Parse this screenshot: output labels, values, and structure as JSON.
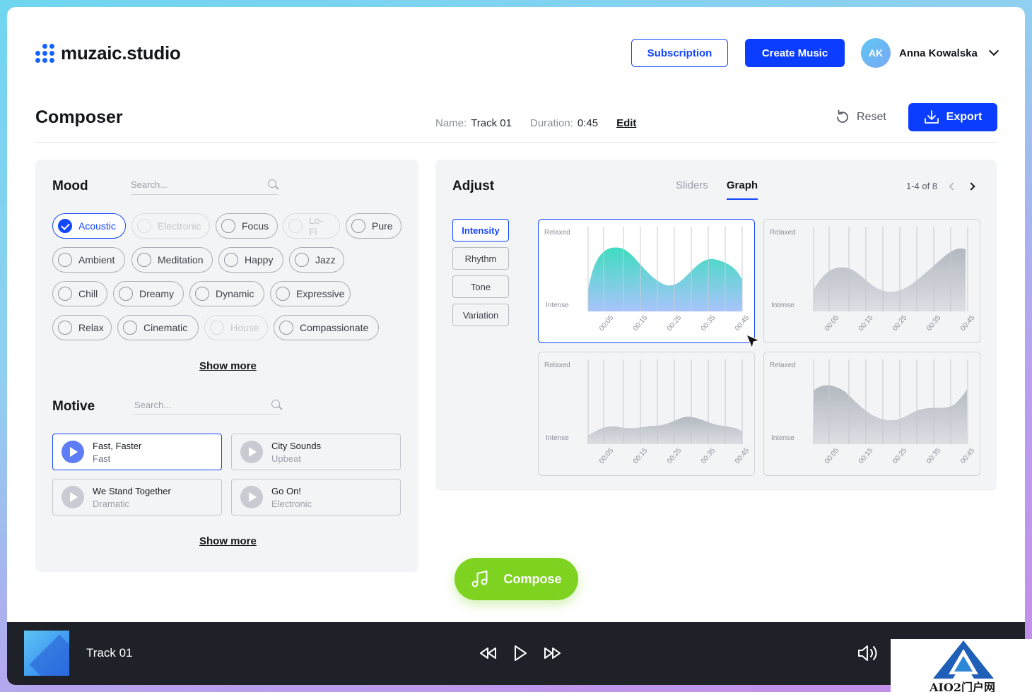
{
  "app": {
    "logo_text": "muzaic.studio",
    "brand_color": "#0a3dff"
  },
  "header": {
    "subscription_label": "Subscription",
    "create_music_label": "Create Music",
    "user": {
      "initials": "AK",
      "name": "Anna Kowalska"
    }
  },
  "composer": {
    "title": "Composer",
    "name_label": "Name:",
    "name_value": "Track 01",
    "duration_label": "Duration:",
    "duration_value": "0:45",
    "edit_label": "Edit",
    "reset_label": "Reset",
    "export_label": "Export"
  },
  "mood": {
    "title": "Mood",
    "search_placeholder": "Search...",
    "chips": [
      {
        "label": "Acoustic",
        "state": "selected"
      },
      {
        "label": "Electronic",
        "state": "disabled"
      },
      {
        "label": "Focus",
        "state": "normal"
      },
      {
        "label": "Lo-Fi",
        "state": "disabled"
      },
      {
        "label": "Pure",
        "state": "normal"
      },
      {
        "label": "Ambient",
        "state": "normal"
      },
      {
        "label": "Meditation",
        "state": "normal"
      },
      {
        "label": "Happy",
        "state": "normal"
      },
      {
        "label": "Jazz",
        "state": "normal"
      },
      {
        "label": "Chill",
        "state": "normal"
      },
      {
        "label": "Dreamy",
        "state": "normal"
      },
      {
        "label": "Dynamic",
        "state": "normal"
      },
      {
        "label": "Expressive",
        "state": "normal"
      },
      {
        "label": "Relax",
        "state": "normal"
      },
      {
        "label": "Cinematic",
        "state": "normal"
      },
      {
        "label": "House",
        "state": "disabled"
      },
      {
        "label": "Compassionate",
        "state": "normal"
      }
    ],
    "show_more_label": "Show more"
  },
  "motive": {
    "title": "Motive",
    "search_placeholder": "Search...",
    "items": [
      {
        "title": "Fast, Faster",
        "subtitle": "Fast",
        "active": true
      },
      {
        "title": "City Sounds",
        "subtitle": "Upbeat",
        "active": false
      },
      {
        "title": "We Stand Together",
        "subtitle": "Dramatic",
        "active": false
      },
      {
        "title": "Go On!",
        "subtitle": "Electronic",
        "active": false
      }
    ],
    "show_more_label": "Show more"
  },
  "adjust": {
    "title": "Adjust",
    "tabs": [
      {
        "label": "Sliders",
        "active": false
      },
      {
        "label": "Graph",
        "active": true
      }
    ],
    "pagination": "1-4 of 8",
    "params": [
      {
        "label": "Intensity",
        "active": true
      },
      {
        "label": "Rhythm",
        "active": false
      },
      {
        "label": "Tone",
        "active": false
      },
      {
        "label": "Variation",
        "active": false
      }
    ],
    "graph_top_label": "Relaxed",
    "graph_bottom_label": "Intense",
    "time_ticks": [
      "00:05",
      "00:15",
      "00:25",
      "00:35",
      "00:45"
    ]
  },
  "compose_label": "Compose",
  "player": {
    "track_name": "Track 01"
  },
  "watermark": {
    "text": "AIO2门户网"
  }
}
